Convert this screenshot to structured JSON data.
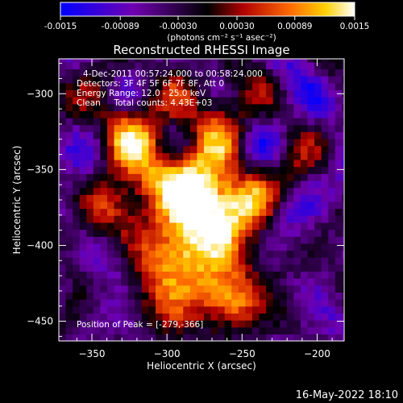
{
  "colorbar": {
    "tick_labels": [
      "-0.0015",
      "-0.00089",
      "-0.00030",
      "0.00030",
      "0.00089",
      "0.0015"
    ],
    "tick_values": [
      -0.0015,
      -0.00089,
      -0.0003,
      0.0003,
      0.00089,
      0.0015
    ],
    "range": [
      -0.0015,
      0.0015
    ],
    "units_label": "(photons cm⁻² s⁻¹ asec⁻²)",
    "colormap": [
      "#0000ff",
      "#7000b0",
      "#000000",
      "#b00000",
      "#ff6a00",
      "#ffd000",
      "#ffffff"
    ]
  },
  "chart_data": {
    "type": "heatmap",
    "title": "Reconstructed RHESSI Image",
    "xlabel": "Heliocentric X (arcsec)",
    "ylabel": "Heliocentric Y (arcsec)",
    "xlim": [
      -372,
      -182
    ],
    "ylim": [
      -463,
      -277
    ],
    "x_ticks": [
      -350,
      -300,
      -250,
      -200
    ],
    "y_ticks": [
      -300,
      -350,
      -400,
      -450
    ],
    "peak": [
      -279,
      -366
    ],
    "annotations": {
      "time_range": "4-Dec-2011 00:57:24.000 to 00:58:24.000",
      "detectors": "Detectors: 3F 4F 5F 6F 7F 8F, Att 0",
      "energy": "Energy Range: 12.0 - 25.0 keV",
      "clean": "Clean     Total counts: 4.43E+03",
      "peak_text": "Position of Peak = [-279,-366]"
    }
  },
  "footer": {
    "timestamp": "16-May-2022 18:10"
  }
}
